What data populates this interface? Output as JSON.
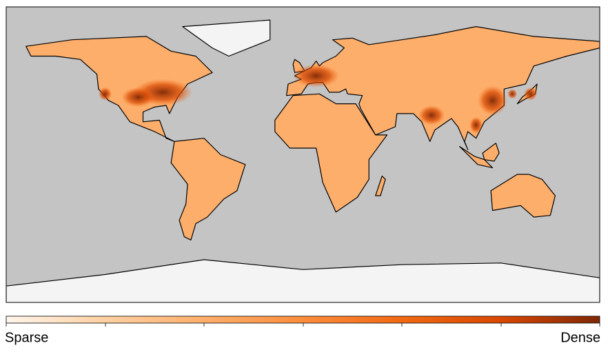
{
  "colorbar": {
    "low_label": "Sparse",
    "high_label": "Dense",
    "colors": [
      "#fff5eb",
      "#fdd0a2",
      "#fdae6b",
      "#fd8d3c",
      "#f16913",
      "#d94801",
      "#7f2704"
    ]
  }
}
